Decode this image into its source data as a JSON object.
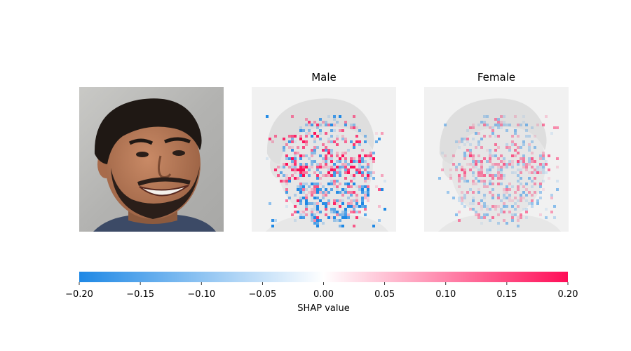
{
  "chart_data": {
    "type": "heatmap",
    "panels": [
      {
        "name": "original",
        "title": ""
      },
      {
        "name": "male",
        "title": "Male"
      },
      {
        "name": "female",
        "title": "Female"
      }
    ],
    "colorbar": {
      "min": -0.2,
      "max": 0.2,
      "ticks": [
        -0.2,
        -0.15,
        -0.1,
        -0.05,
        0.0,
        0.05,
        0.1,
        0.15,
        0.2
      ],
      "tick_labels": [
        "−0.20",
        "−0.15",
        "−0.10",
        "−0.05",
        "0.00",
        "0.05",
        "0.10",
        "0.15",
        "0.20"
      ],
      "label": "SHAP value",
      "color_negative": "#1e88e5",
      "color_zero": "#ffffff",
      "color_positive": "#ff0d57"
    }
  }
}
